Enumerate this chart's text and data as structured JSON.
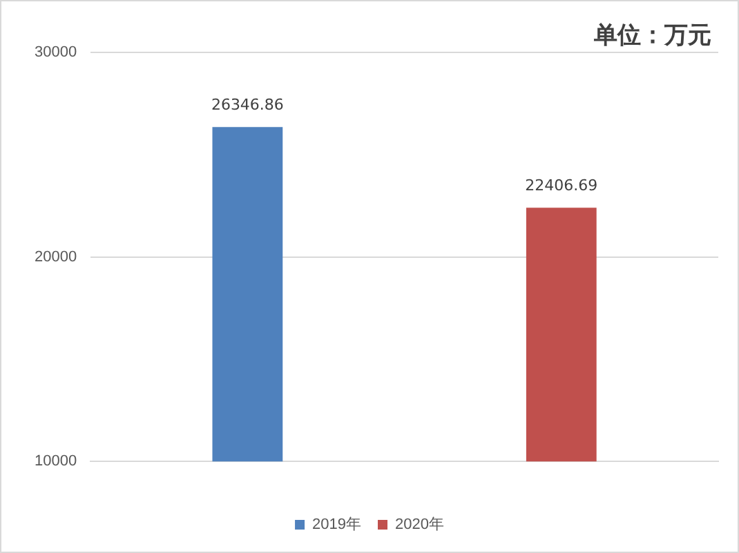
{
  "chart_data": {
    "type": "bar",
    "categories": [
      null,
      null
    ],
    "series": [
      {
        "name": "2019年",
        "color": "#4f81bd",
        "values": [
          26346.86,
          null
        ]
      },
      {
        "name": "2020年",
        "color": "#c0504d",
        "values": [
          null,
          22406.69
        ]
      }
    ],
    "ylim": [
      10000,
      30000
    ],
    "yticks": [
      10000,
      20000,
      30000
    ],
    "grid": "y",
    "legend": "bottom",
    "data_labels": true,
    "annotations": [
      "单位：万元"
    ]
  }
}
